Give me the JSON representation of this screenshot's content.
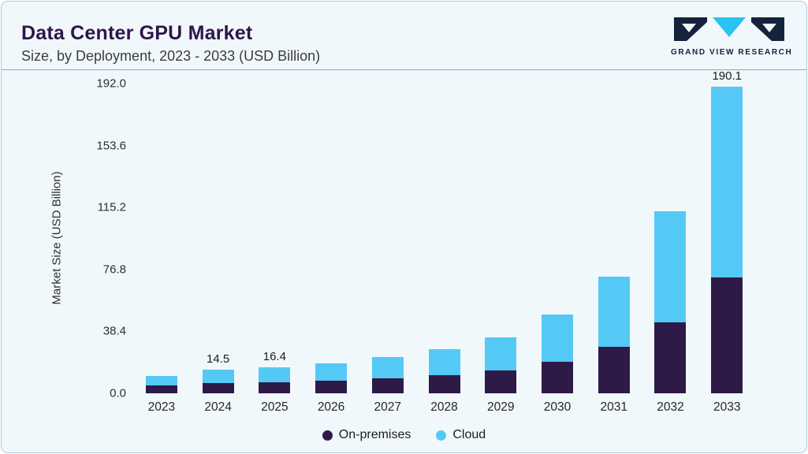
{
  "header": {
    "title": "Data Center GPU Market",
    "subtitle": "Size, by Deployment, 2023 - 2033 (USD Billion)"
  },
  "logo": {
    "text": "GRAND VIEW RESEARCH",
    "dark_color": "#14233C",
    "accent_color": "#29C4F3"
  },
  "colors": {
    "card_background": "#F1F8FC",
    "card_border": "#A9CFE2",
    "title_text": "#2F1549",
    "on_premises": "#2E1A47",
    "cloud": "#55C9F5"
  },
  "chart_data": {
    "type": "bar",
    "stacked": true,
    "title": "Data Center GPU Market",
    "subtitle": "Size, by Deployment, 2023 - 2033 (USD Billion)",
    "xlabel": "",
    "ylabel": "Market Size (USD Billion)",
    "ylim": [
      0,
      192
    ],
    "yticks": [
      192.0,
      153.6,
      115.2,
      76.8,
      38.4,
      0.0
    ],
    "grid": false,
    "legend_position": "bottom",
    "categories": [
      "2023",
      "2024",
      "2025",
      "2026",
      "2027",
      "2028",
      "2029",
      "2030",
      "2031",
      "2032",
      "2033"
    ],
    "series": [
      {
        "name": "On-premises",
        "color": "#2E1A47",
        "values": [
          4.9,
          6.4,
          7.1,
          7.9,
          9.4,
          11.4,
          14.1,
          19.7,
          28.7,
          44.0,
          72.0
        ]
      },
      {
        "name": "Cloud",
        "color": "#55C9F5",
        "values": [
          6.1,
          8.1,
          9.3,
          10.6,
          12.9,
          16.1,
          20.4,
          29.2,
          43.7,
          68.7,
          118.1
        ]
      }
    ],
    "totals": [
      11.0,
      14.5,
      16.4,
      18.5,
      22.3,
      27.5,
      34.5,
      48.9,
      72.4,
      112.7,
      190.1
    ],
    "bar_labels": [
      "",
      "14.5",
      "16.4",
      "",
      "",
      "",
      "",
      "",
      "",
      "",
      "190.1"
    ]
  }
}
